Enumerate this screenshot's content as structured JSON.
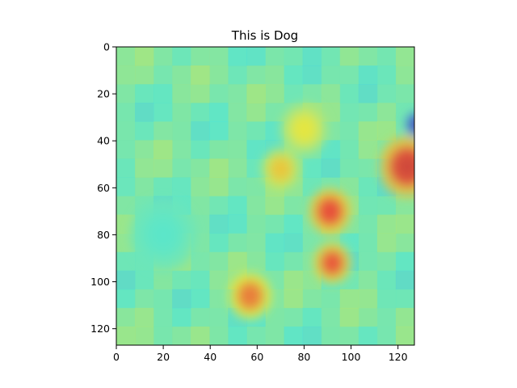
{
  "chart_data": {
    "type": "heatmap",
    "title": "This is Dog",
    "xlabel": "",
    "ylabel": "",
    "xlim": [
      0,
      127
    ],
    "ylim": [
      127,
      0
    ],
    "x_ticks": [
      0,
      20,
      40,
      60,
      80,
      100,
      120
    ],
    "y_ticks": [
      0,
      20,
      40,
      60,
      80,
      100,
      120
    ],
    "grid": false,
    "colormap": "jet",
    "base_colormap_level": 0.45,
    "description_of_underlying_image": "photo of a dog",
    "hotspots": [
      {
        "x": 124,
        "y": 51,
        "intensity": 0.92,
        "spread": 12
      },
      {
        "x": 91,
        "y": 70,
        "intensity": 0.88,
        "spread": 9
      },
      {
        "x": 92,
        "y": 92,
        "intensity": 0.86,
        "spread": 8
      },
      {
        "x": 57,
        "y": 106,
        "intensity": 0.8,
        "spread": 9
      },
      {
        "x": 70,
        "y": 52,
        "intensity": 0.68,
        "spread": 8
      },
      {
        "x": 128,
        "y": 33,
        "intensity": 0.05,
        "spread": 5
      },
      {
        "x": 80,
        "y": 35,
        "intensity": 0.62,
        "spread": 10
      },
      {
        "x": 20,
        "y": 80,
        "intensity": 0.4,
        "spread": 14
      }
    ],
    "colors": {
      "low": "#1f3bd6",
      "mid_low": "#5ccfd0",
      "mid": "#9fd27e",
      "mid_high": "#e6dc6a",
      "high": "#c0392b"
    }
  }
}
